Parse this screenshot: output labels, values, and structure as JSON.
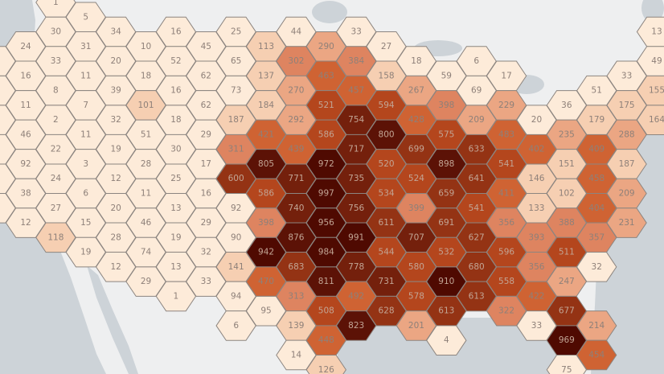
{
  "map": {
    "type": "hexbin",
    "colors": {
      "land": "#eeeff0",
      "water": "#cdd3d8",
      "hex_border": "#8c8580",
      "scale": [
        "#fdebd9",
        "#f6cfb2",
        "#eba683",
        "#de8460",
        "#cf6333",
        "#b4461d",
        "#943314",
        "#74200c",
        "#5c1206",
        "#4f0a01"
      ],
      "label_light": "#8e8079",
      "label_dark": "#c2a595"
    },
    "hexbins": [
      [
        24,
        16,
        11,
        46,
        92,
        38,
        12
      ],
      [
        1,
        30,
        33,
        8,
        2,
        22,
        24,
        27,
        118
      ],
      [
        5,
        31,
        11,
        7,
        11,
        3,
        6,
        15,
        19
      ],
      [
        34,
        20,
        39,
        32,
        19,
        12,
        20,
        28,
        12
      ],
      [
        10,
        18,
        101,
        51,
        28,
        11,
        46,
        74,
        29
      ],
      [
        16,
        52,
        16,
        18,
        30,
        25,
        13,
        19,
        13,
        1
      ],
      [
        45,
        62,
        62,
        29,
        17,
        16,
        29,
        32,
        33
      ],
      [
        25,
        65,
        73,
        187,
        311,
        600,
        92,
        90,
        141,
        94,
        6
      ],
      [
        113,
        137,
        184,
        421,
        805,
        586,
        398,
        942,
        470,
        95
      ],
      [
        44,
        302,
        270,
        292,
        439,
        771,
        740,
        876,
        683,
        313,
        139,
        14
      ],
      [
        290,
        463,
        521,
        586,
        972,
        997,
        956,
        984,
        811,
        508,
        448,
        126
      ],
      [
        33,
        384,
        457,
        754,
        717,
        735,
        756,
        991,
        778,
        492,
        823
      ],
      [
        27,
        158,
        594,
        800,
        520,
        534,
        611,
        544,
        731,
        628
      ],
      [
        18,
        267,
        428,
        699,
        524,
        399,
        707,
        580,
        578,
        201
      ],
      [
        59,
        398,
        575,
        898,
        659,
        691,
        532,
        910,
        613,
        4
      ],
      [
        6,
        69,
        209,
        633,
        641,
        541,
        627,
        680,
        613
      ],
      [
        17,
        229,
        483,
        541,
        411,
        356,
        596,
        558,
        322
      ],
      [
        20,
        402,
        146,
        133,
        393,
        356,
        422,
        33
      ],
      [
        36,
        235,
        151,
        102,
        388,
        511,
        247,
        677,
        969,
        75
      ],
      [
        51,
        179,
        409,
        458,
        404,
        357,
        32,
        null,
        214,
        454
      ],
      [
        33,
        175,
        288,
        187,
        209,
        231
      ],
      [
        13,
        49,
        155,
        164
      ]
    ]
  }
}
